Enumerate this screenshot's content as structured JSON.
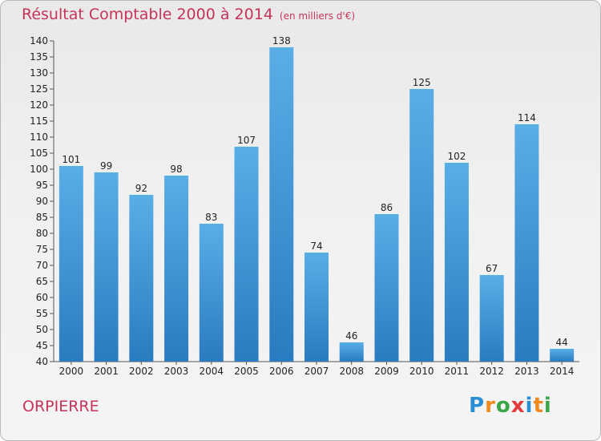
{
  "title": "Résultat Comptable 2000 à 2014",
  "subtitle": "(en milliers d'€)",
  "commune": "ORPIERRE",
  "logo_text": "Proxiti",
  "colors": {
    "title": "#c8335a",
    "bar_top": "#5aaee6",
    "bar_bottom": "#2a7bbf",
    "logo": [
      "#2a8fd4",
      "#f08a1c",
      "#3aa647",
      "#e43a3a",
      "#2a8fd4",
      "#f08a1c",
      "#3aa647"
    ]
  },
  "chart_data": {
    "type": "bar",
    "categories": [
      "2000",
      "2001",
      "2002",
      "2003",
      "2004",
      "2005",
      "2006",
      "2007",
      "2008",
      "2009",
      "2010",
      "2011",
      "2012",
      "2013",
      "2014"
    ],
    "values": [
      101,
      99,
      92,
      98,
      83,
      107,
      138,
      74,
      46,
      86,
      125,
      102,
      67,
      114,
      44
    ],
    "ylim": [
      40,
      140
    ],
    "ytick_step": 5,
    "grid": false,
    "data_labels": true
  }
}
